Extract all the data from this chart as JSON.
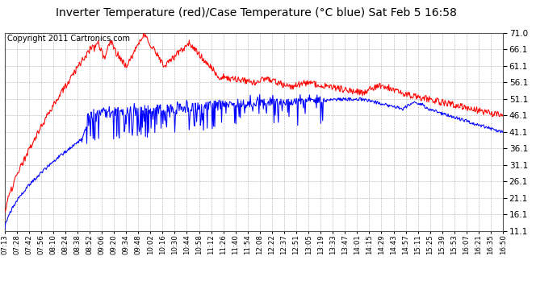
{
  "title": "Inverter Temperature (red)/Case Temperature (°C blue) Sat Feb 5 16:58",
  "copyright": "Copyright 2011 Cartronics.com",
  "y_ticks": [
    11.1,
    16.1,
    21.1,
    26.1,
    31.1,
    36.1,
    41.1,
    46.1,
    51.1,
    56.1,
    61.1,
    66.1,
    71.0
  ],
  "ylim": [
    11.1,
    71.0
  ],
  "x_labels": [
    "07:13",
    "07:28",
    "07:42",
    "07:56",
    "08:10",
    "08:24",
    "08:38",
    "08:52",
    "09:06",
    "09:20",
    "09:34",
    "09:48",
    "10:02",
    "10:16",
    "10:30",
    "10:44",
    "10:58",
    "11:12",
    "11:26",
    "11:40",
    "11:54",
    "12:08",
    "12:22",
    "12:37",
    "12:51",
    "13:05",
    "13:19",
    "13:33",
    "13:47",
    "14:01",
    "14:15",
    "14:29",
    "14:43",
    "14:57",
    "15:11",
    "15:25",
    "15:39",
    "15:53",
    "16:07",
    "16:21",
    "16:35",
    "16:50"
  ],
  "background_color": "#ffffff",
  "plot_bg_color": "#ffffff",
  "grid_color": "#b0b0b0",
  "red_color": "#ff0000",
  "blue_color": "#0000ff",
  "title_fontsize": 10,
  "copyright_fontsize": 7
}
